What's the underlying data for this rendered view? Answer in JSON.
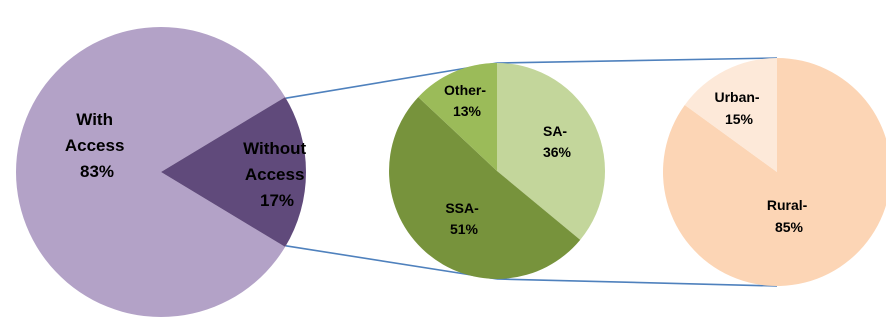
{
  "chart_data": [
    {
      "type": "pie",
      "slices": [
        {
          "label_line1": "With",
          "label_line2": "Access",
          "value_label": "83%",
          "value": 83,
          "color": "#b3a2c7"
        },
        {
          "label_line1": "Without",
          "label_line2": "Access",
          "value_label": "17%",
          "value": 17,
          "color": "#604a7b"
        }
      ]
    },
    {
      "type": "pie",
      "slices": [
        {
          "label": "SA-",
          "value_label": "36%",
          "value": 36,
          "color": "#c3d69b"
        },
        {
          "label": "SSA-",
          "value_label": "51%",
          "value": 51,
          "color": "#77933c"
        },
        {
          "label": "Other-",
          "value_label": "13%",
          "value": 13,
          "color": "#9bbb59"
        }
      ]
    },
    {
      "type": "pie",
      "slices": [
        {
          "label": "Rural-",
          "value_label": "85%",
          "value": 85,
          "color": "#fcd5b5"
        },
        {
          "label": "Urban-",
          "value_label": "15%",
          "value": 15,
          "color": "#fde9d9"
        }
      ]
    }
  ],
  "connector_color": "#4f81bd"
}
